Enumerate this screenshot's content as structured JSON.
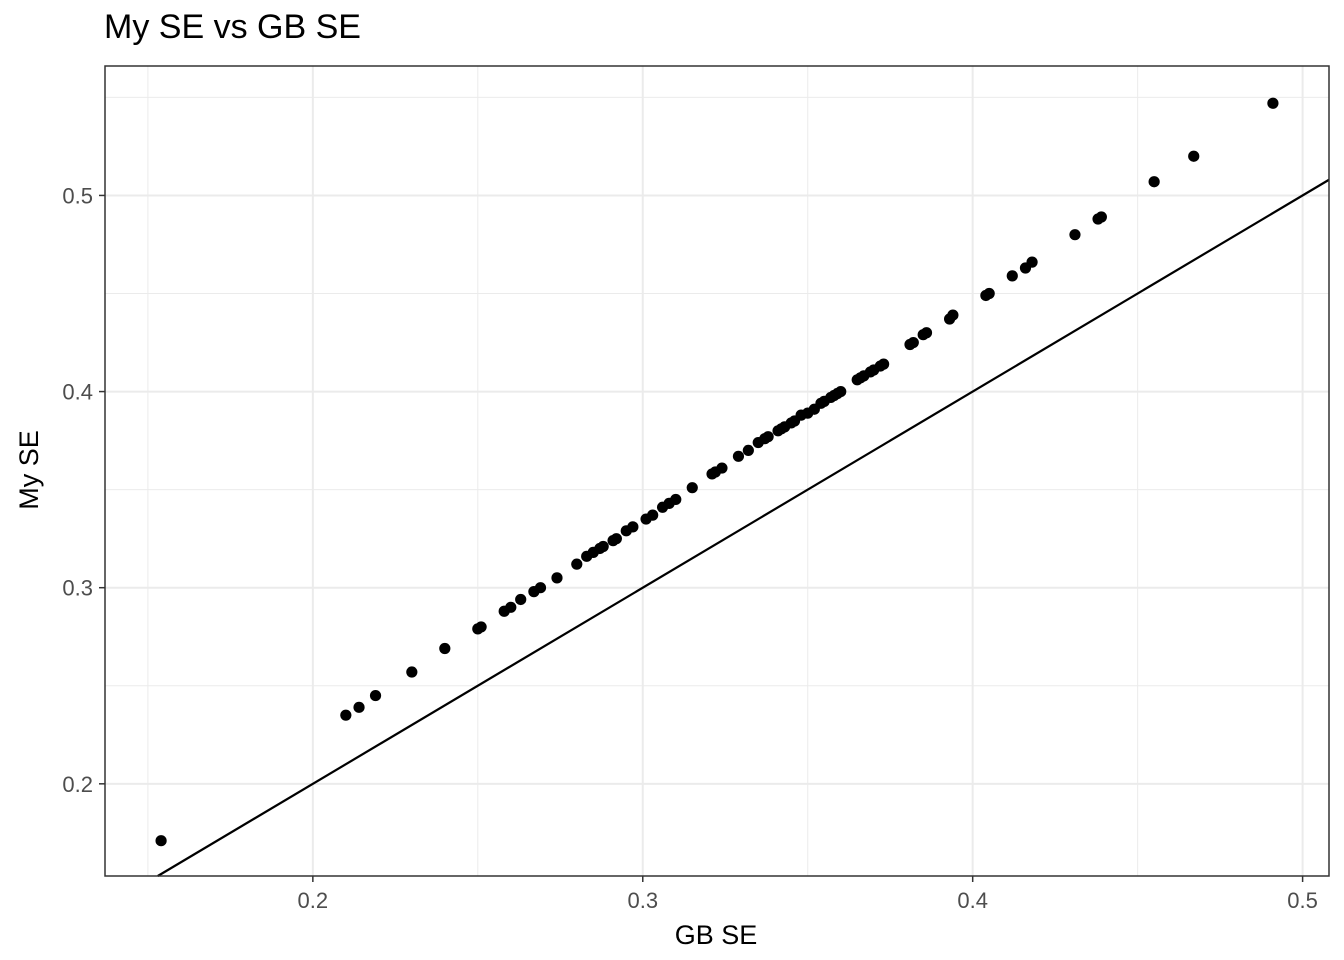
{
  "chart_data": {
    "type": "scatter",
    "title": "My SE vs GB SE",
    "xlabel": "GB SE",
    "ylabel": "My SE",
    "xlim": [
      0.137,
      0.508
    ],
    "ylim": [
      0.153,
      0.566
    ],
    "x_ticks": [
      0.2,
      0.3,
      0.4,
      0.5
    ],
    "y_ticks": [
      0.2,
      0.3,
      0.4,
      0.5
    ],
    "x_tick_labels": [
      "0.2",
      "0.3",
      "0.4",
      "0.5"
    ],
    "y_tick_labels": [
      "0.2",
      "0.3",
      "0.4",
      "0.5"
    ],
    "grid": true,
    "reference_line": {
      "type": "identity",
      "slope": 1,
      "intercept": 0,
      "color": "#000000"
    },
    "point_color": "#000000",
    "points": [
      [
        0.154,
        0.171
      ],
      [
        0.21,
        0.235
      ],
      [
        0.214,
        0.239
      ],
      [
        0.219,
        0.245
      ],
      [
        0.23,
        0.257
      ],
      [
        0.24,
        0.269
      ],
      [
        0.25,
        0.279
      ],
      [
        0.251,
        0.28
      ],
      [
        0.258,
        0.288
      ],
      [
        0.26,
        0.29
      ],
      [
        0.263,
        0.294
      ],
      [
        0.267,
        0.298
      ],
      [
        0.269,
        0.3
      ],
      [
        0.274,
        0.305
      ],
      [
        0.28,
        0.312
      ],
      [
        0.283,
        0.316
      ],
      [
        0.285,
        0.318
      ],
      [
        0.287,
        0.32
      ],
      [
        0.288,
        0.321
      ],
      [
        0.291,
        0.324
      ],
      [
        0.292,
        0.325
      ],
      [
        0.295,
        0.329
      ],
      [
        0.297,
        0.331
      ],
      [
        0.301,
        0.335
      ],
      [
        0.303,
        0.337
      ],
      [
        0.306,
        0.341
      ],
      [
        0.308,
        0.343
      ],
      [
        0.31,
        0.345
      ],
      [
        0.315,
        0.351
      ],
      [
        0.321,
        0.358
      ],
      [
        0.322,
        0.359
      ],
      [
        0.324,
        0.361
      ],
      [
        0.329,
        0.367
      ],
      [
        0.332,
        0.37
      ],
      [
        0.335,
        0.374
      ],
      [
        0.337,
        0.376
      ],
      [
        0.338,
        0.377
      ],
      [
        0.341,
        0.38
      ],
      [
        0.342,
        0.381
      ],
      [
        0.343,
        0.382
      ],
      [
        0.345,
        0.384
      ],
      [
        0.346,
        0.385
      ],
      [
        0.348,
        0.388
      ],
      [
        0.35,
        0.389
      ],
      [
        0.352,
        0.391
      ],
      [
        0.354,
        0.394
      ],
      [
        0.355,
        0.395
      ],
      [
        0.357,
        0.397
      ],
      [
        0.358,
        0.398
      ],
      [
        0.359,
        0.399
      ],
      [
        0.36,
        0.4
      ],
      [
        0.365,
        0.406
      ],
      [
        0.366,
        0.407
      ],
      [
        0.367,
        0.408
      ],
      [
        0.369,
        0.41
      ],
      [
        0.37,
        0.411
      ],
      [
        0.372,
        0.413
      ],
      [
        0.373,
        0.414
      ],
      [
        0.381,
        0.424
      ],
      [
        0.382,
        0.425
      ],
      [
        0.385,
        0.429
      ],
      [
        0.386,
        0.43
      ],
      [
        0.393,
        0.437
      ],
      [
        0.394,
        0.439
      ],
      [
        0.404,
        0.449
      ],
      [
        0.405,
        0.45
      ],
      [
        0.412,
        0.459
      ],
      [
        0.416,
        0.463
      ],
      [
        0.418,
        0.466
      ],
      [
        0.431,
        0.48
      ],
      [
        0.438,
        0.488
      ],
      [
        0.439,
        0.489
      ],
      [
        0.455,
        0.507
      ],
      [
        0.467,
        0.52
      ],
      [
        0.491,
        0.547
      ]
    ]
  }
}
